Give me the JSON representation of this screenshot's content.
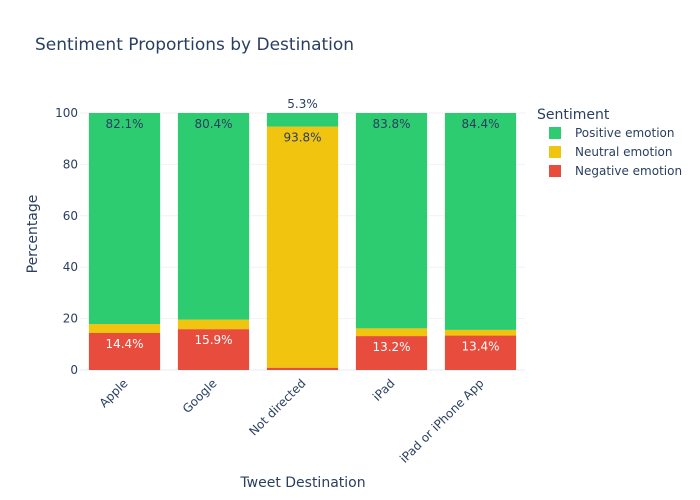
{
  "chart_data": {
    "type": "bar",
    "stacked": true,
    "title": "Sentiment Proportions by Destination",
    "xlabel": "Tweet Destination",
    "ylabel": "Percentage",
    "ylim": [
      0,
      100
    ],
    "yticks": [
      0,
      20,
      40,
      60,
      80,
      100
    ],
    "grid": true,
    "legend_title": "Sentiment",
    "legend_position": "right",
    "categories": [
      "Apple",
      "Google",
      "Not directed",
      "iPad",
      "iPad or iPhone App"
    ],
    "series": [
      {
        "name": "Negative emotion",
        "color": "#e74c3c",
        "values": [
          14.4,
          15.9,
          0.9,
          13.2,
          13.4
        ],
        "labels": [
          "14.4%",
          "15.9%",
          "",
          "13.2%",
          "13.4%"
        ],
        "label_color": "#ffffff"
      },
      {
        "name": "Neutral emotion",
        "color": "#f1c40f",
        "values": [
          3.5,
          3.7,
          93.8,
          3.0,
          2.2
        ],
        "labels": [
          "",
          "",
          "93.8%",
          "",
          ""
        ],
        "label_color": "#2a3f5f"
      },
      {
        "name": "Positive emotion",
        "color": "#2ecc71",
        "values": [
          82.1,
          80.4,
          5.3,
          83.8,
          84.4
        ],
        "labels": [
          "82.1%",
          "80.4%",
          "5.3%",
          "83.8%",
          "84.4%"
        ],
        "label_color": "#2a3f5f"
      }
    ]
  }
}
